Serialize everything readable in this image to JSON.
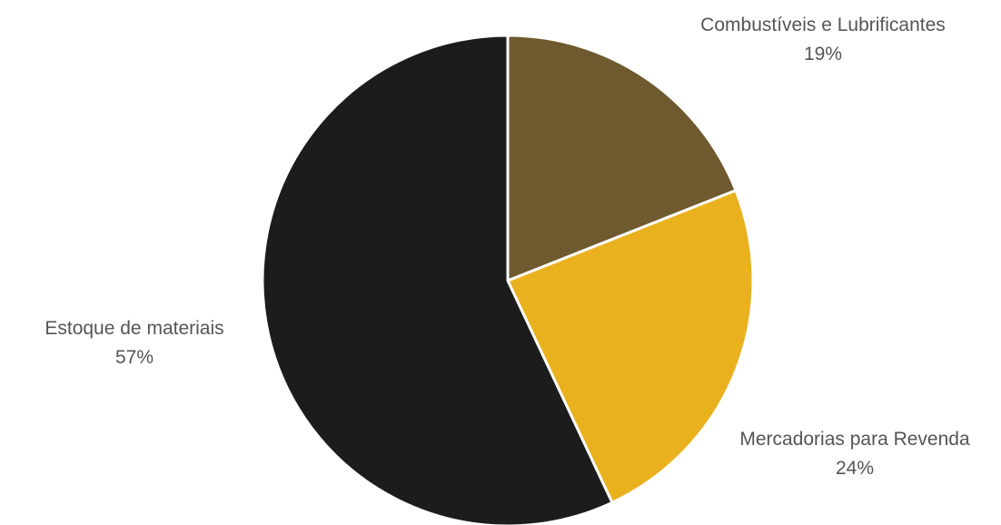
{
  "chart_data": {
    "type": "pie",
    "slices": [
      {
        "name": "Combustíveis e Lubrificantes",
        "value": 19,
        "label": "19%",
        "color": "#6e5a2e"
      },
      {
        "name": "Mercadorias para Revenda",
        "value": 24,
        "label": "24%",
        "color": "#eab11e"
      },
      {
        "name": "Estoque de materiais",
        "value": 57,
        "label": "57%",
        "color": "#1c1c1c"
      }
    ],
    "start_angle": "12 o'clock",
    "direction": "clockwise",
    "label_placement": "outside"
  }
}
